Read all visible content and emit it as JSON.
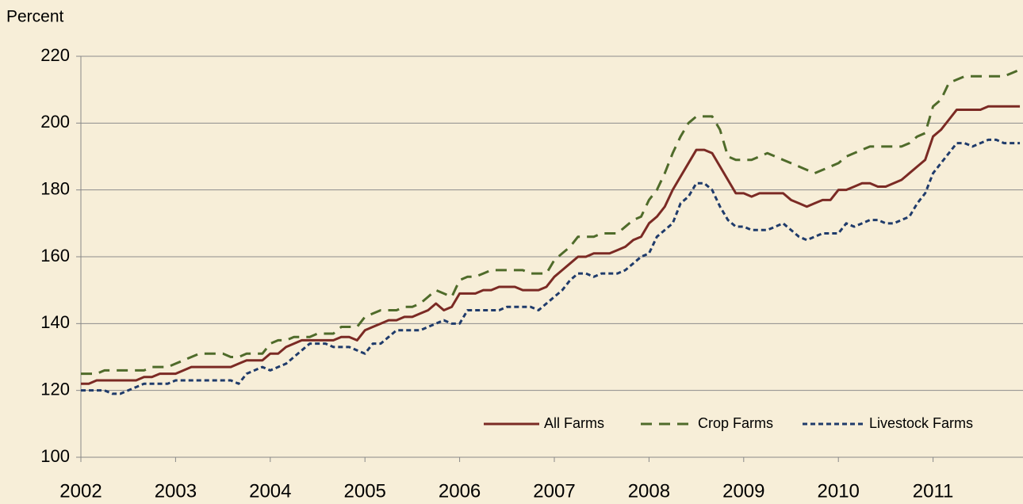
{
  "chart_data": {
    "type": "line",
    "y_label": "Percent",
    "categories": [
      "2002",
      null,
      null,
      null,
      null,
      null,
      null,
      null,
      null,
      null,
      null,
      null,
      "2003",
      null,
      null,
      null,
      null,
      null,
      null,
      null,
      null,
      null,
      null,
      null,
      "2004",
      null,
      null,
      null,
      null,
      null,
      null,
      null,
      null,
      null,
      null,
      null,
      "2005",
      null,
      null,
      null,
      null,
      null,
      null,
      null,
      null,
      null,
      null,
      null,
      "2006",
      null,
      null,
      null,
      null,
      null,
      null,
      null,
      null,
      null,
      null,
      null,
      "2007",
      null,
      null,
      null,
      null,
      null,
      null,
      null,
      null,
      null,
      null,
      null,
      "2008",
      null,
      null,
      null,
      null,
      null,
      null,
      null,
      null,
      null,
      null,
      null,
      "2009",
      null,
      null,
      null,
      null,
      null,
      null,
      null,
      null,
      null,
      null,
      null,
      "2010",
      null,
      null,
      null,
      null,
      null,
      null,
      null,
      null,
      null,
      null,
      null,
      "2011",
      null,
      null,
      null,
      null,
      null,
      null,
      null,
      null,
      null,
      null,
      null
    ],
    "series": [
      {
        "name": "All Farms",
        "color": "#7b2a24",
        "dash": "solid",
        "values": [
          122,
          122,
          123,
          123,
          123,
          123,
          123,
          123,
          124,
          124,
          125,
          125,
          125,
          126,
          127,
          127,
          127,
          127,
          127,
          127,
          128,
          129,
          129,
          129,
          131,
          131,
          133,
          134,
          135,
          135,
          135,
          135,
          135,
          136,
          136,
          135,
          138,
          139,
          140,
          141,
          141,
          142,
          142,
          143,
          144,
          146,
          144,
          145,
          149,
          149,
          149,
          150,
          150,
          151,
          151,
          151,
          150,
          150,
          150,
          151,
          154,
          156,
          158,
          160,
          160,
          161,
          161,
          161,
          162,
          163,
          165,
          166,
          170,
          172,
          175,
          180,
          184,
          188,
          192,
          192,
          191,
          187,
          183,
          179,
          179,
          178,
          179,
          179,
          179,
          179,
          177,
          176,
          175,
          176,
          177,
          177,
          180,
          180,
          181,
          182,
          182,
          181,
          181,
          182,
          183,
          185,
          187,
          189,
          196,
          198,
          201,
          204,
          204,
          204,
          204,
          205,
          205,
          205,
          205,
          205
        ]
      },
      {
        "name": "Crop Farms",
        "color": "#4f6b2a",
        "dash": "long",
        "values": [
          125,
          125,
          125,
          126,
          126,
          126,
          126,
          126,
          126,
          127,
          127,
          127,
          128,
          129,
          130,
          131,
          131,
          131,
          131,
          130,
          130,
          131,
          131,
          131,
          134,
          135,
          135,
          136,
          136,
          136,
          137,
          137,
          137,
          139,
          139,
          139,
          142,
          143,
          144,
          144,
          144,
          145,
          145,
          146,
          148,
          150,
          149,
          148,
          153,
          154,
          154,
          155,
          156,
          156,
          156,
          156,
          156,
          155,
          155,
          155,
          159,
          161,
          163,
          166,
          166,
          166,
          167,
          167,
          167,
          169,
          171,
          172,
          177,
          180,
          185,
          191,
          196,
          200,
          202,
          202,
          202,
          198,
          190,
          189,
          189,
          189,
          190,
          191,
          190,
          189,
          188,
          187,
          186,
          185,
          186,
          187,
          188,
          190,
          191,
          192,
          193,
          193,
          193,
          193,
          193,
          194,
          196,
          197,
          205,
          207,
          212,
          213,
          214,
          214,
          214,
          214,
          214,
          214,
          215,
          216
        ]
      },
      {
        "name": "Livestock Farms",
        "color": "#1f3b6b",
        "dash": "short",
        "values": [
          120,
          120,
          120,
          120,
          119,
          119,
          120,
          121,
          122,
          122,
          122,
          122,
          123,
          123,
          123,
          123,
          123,
          123,
          123,
          123,
          122,
          125,
          126,
          127,
          126,
          127,
          128,
          130,
          132,
          134,
          134,
          134,
          133,
          133,
          133,
          132,
          131,
          134,
          134,
          136,
          138,
          138,
          138,
          138,
          139,
          140,
          141,
          140,
          140,
          144,
          144,
          144,
          144,
          144,
          145,
          145,
          145,
          145,
          144,
          146,
          148,
          150,
          153,
          155,
          155,
          154,
          155,
          155,
          155,
          156,
          158,
          160,
          161,
          166,
          168,
          170,
          176,
          178,
          182,
          182,
          180,
          175,
          171,
          169,
          169,
          168,
          168,
          168,
          169,
          170,
          168,
          166,
          165,
          166,
          167,
          167,
          167,
          170,
          169,
          170,
          171,
          171,
          170,
          170,
          171,
          172,
          176,
          179,
          185,
          188,
          191,
          194,
          194,
          193,
          194,
          195,
          195,
          194,
          194,
          194
        ]
      }
    ],
    "ylim": [
      100,
      220
    ],
    "yticks": [
      100,
      120,
      140,
      160,
      180,
      200,
      220
    ],
    "grid": true,
    "legend": "lower right"
  }
}
